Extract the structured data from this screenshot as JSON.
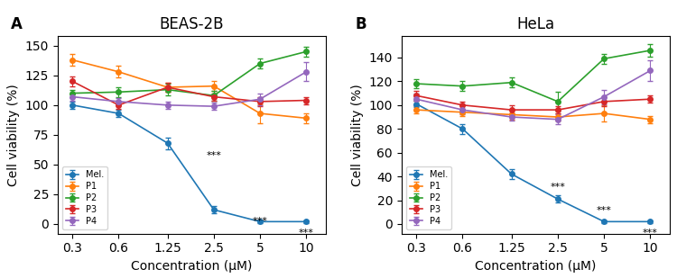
{
  "chart_data": [
    {
      "type": "line",
      "panel_label": "A",
      "title": "BEAS-2B",
      "xlabel": "Concentration (μM)",
      "ylabel": "Cell viability (%)",
      "log": "x",
      "x": [
        0.3,
        0.6,
        1.25,
        2.5,
        5,
        10
      ],
      "xlim": [
        0.24,
        13.5
      ],
      "xticks": [
        0.3,
        0.6,
        1.25,
        2.5,
        5,
        10
      ],
      "ylim": [
        -8,
        158
      ],
      "yticks": [
        0,
        25,
        50,
        75,
        100,
        125,
        150
      ],
      "legend": "lower left",
      "series": [
        {
          "name": "Mel.",
          "marker": "o",
          "values": [
            100,
            93,
            68,
            12,
            2,
            2
          ],
          "yerr": [
            3,
            3,
            5,
            3,
            1,
            1
          ]
        },
        {
          "name": "P1",
          "marker": "o",
          "values": [
            138,
            128,
            115,
            116,
            93,
            89
          ],
          "yerr": [
            5,
            5,
            4,
            4,
            8,
            4
          ]
        },
        {
          "name": "P2",
          "marker": "o",
          "values": [
            110,
            111,
            113,
            108,
            135,
            145
          ],
          "yerr": [
            3,
            4,
            5,
            4,
            4,
            4
          ]
        },
        {
          "name": "P3",
          "marker": "o",
          "values": [
            120,
            100,
            115,
            107,
            103,
            104
          ],
          "yerr": [
            4,
            3,
            4,
            3,
            4,
            3
          ]
        },
        {
          "name": "P4",
          "marker": "o",
          "values": [
            107,
            103,
            100,
            99,
            105,
            128
          ],
          "yerr": [
            3,
            3,
            3,
            3,
            5,
            8
          ]
        }
      ],
      "annotations": [
        {
          "text": "***",
          "x": 2.5,
          "y": 61
        },
        {
          "text": "***",
          "x": 5,
          "y": 6
        },
        {
          "text": "***",
          "x": 10,
          "y": -4
        }
      ]
    },
    {
      "type": "line",
      "panel_label": "B",
      "title": "HeLa",
      "xlabel": "Concentration (μM)",
      "ylabel": "Cell viability (%)",
      "log": "x",
      "x": [
        0.3,
        0.6,
        1.25,
        2.5,
        5,
        10
      ],
      "xlim": [
        0.24,
        13.5
      ],
      "xticks": [
        0.3,
        0.6,
        1.25,
        2.5,
        5,
        10
      ],
      "ylim": [
        -8,
        158
      ],
      "yticks": [
        0,
        20,
        40,
        60,
        80,
        100,
        120,
        140
      ],
      "legend": "lower left",
      "series": [
        {
          "name": "Mel.",
          "marker": "o",
          "values": [
            101,
            80,
            42,
            21,
            2,
            2
          ],
          "yerr": [
            3,
            4,
            4,
            3,
            1,
            1
          ]
        },
        {
          "name": "P1",
          "marker": "o",
          "values": [
            96,
            94,
            92,
            90,
            93,
            88
          ],
          "yerr": [
            3,
            3,
            4,
            3,
            7,
            3
          ]
        },
        {
          "name": "P2",
          "marker": "o",
          "values": [
            118,
            116,
            119,
            103,
            139,
            146
          ],
          "yerr": [
            4,
            4,
            4,
            8,
            4,
            5
          ]
        },
        {
          "name": "P3",
          "marker": "o",
          "values": [
            108,
            100,
            96,
            96,
            103,
            105
          ],
          "yerr": [
            4,
            3,
            4,
            3,
            4,
            3
          ]
        },
        {
          "name": "P4",
          "marker": "o",
          "values": [
            105,
            96,
            90,
            88,
            107,
            129
          ],
          "yerr": [
            5,
            4,
            3,
            4,
            6,
            9
          ]
        }
      ],
      "annotations": [
        {
          "text": "***",
          "x": 2.5,
          "y": 35
        },
        {
          "text": "***",
          "x": 5,
          "y": 15
        },
        {
          "text": "***",
          "x": 10,
          "y": -4
        }
      ]
    }
  ]
}
